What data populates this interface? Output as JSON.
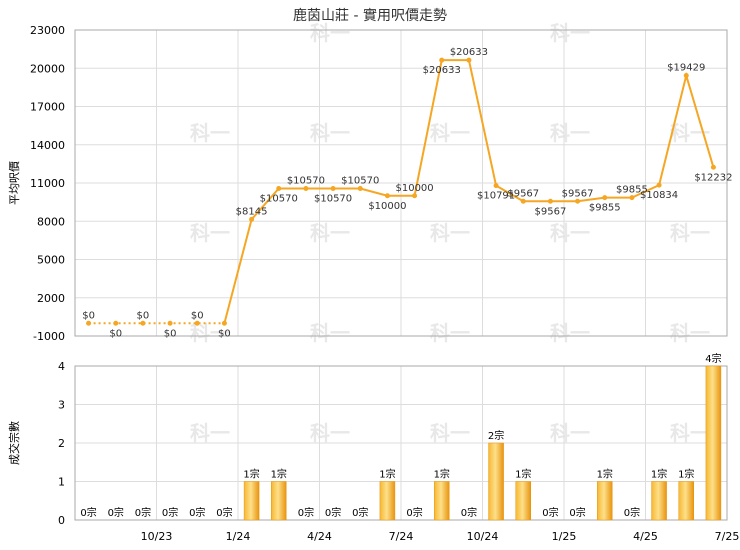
{
  "chart_data": [
    {
      "type": "line",
      "title": "鹿茵山莊 - 實用呎價走勢",
      "ylabel": "平均呎價",
      "ylim": [
        -1000,
        23000
      ],
      "yticks": [
        -1000,
        2000,
        5000,
        8000,
        11000,
        14000,
        17000,
        20000,
        23000
      ],
      "grid": true,
      "x_tick_labels": [
        "10/23",
        "1/24",
        "4/24",
        "7/24",
        "10/24",
        "1/25",
        "4/25",
        "7/25"
      ],
      "x_tick_index": [
        2,
        5,
        8,
        11,
        14,
        17,
        20,
        23
      ],
      "line_color": "#f5a623",
      "series": [
        {
          "values": [
            0,
            0,
            0,
            0,
            0,
            0,
            8145,
            10570,
            10570,
            10570,
            10570,
            10000,
            10000,
            20633,
            20633,
            10791,
            9567,
            9567,
            9567,
            9855,
            9855,
            10834,
            19429,
            12232
          ],
          "labels": [
            "$0",
            "$0",
            "$0",
            "$0",
            "$0",
            "$0",
            "$8145",
            "$10570",
            "$10570",
            "$10570",
            "$10570",
            "$10000",
            "$10000",
            "$20633",
            "$20633",
            "$10791",
            "$9567",
            "$9567",
            "$9567",
            "$9855",
            "$9855",
            "$10834",
            "$19429",
            "$12232"
          ],
          "dotted_until": 5
        }
      ]
    },
    {
      "type": "bar",
      "ylabel": "成交宗數",
      "ylim": [
        0,
        4
      ],
      "yticks": [
        0,
        1,
        2,
        3,
        4
      ],
      "grid": true,
      "bar_color": "#f5a623",
      "values": [
        0,
        0,
        0,
        0,
        0,
        0,
        1,
        1,
        0,
        0,
        0,
        1,
        0,
        1,
        0,
        2,
        1,
        0,
        0,
        1,
        0,
        1,
        1,
        4
      ],
      "labels": [
        "0宗",
        "0宗",
        "0宗",
        "0宗",
        "0宗",
        "0宗",
        "1宗",
        "1宗",
        "0宗",
        "0宗",
        "0宗",
        "1宗",
        "0宗",
        "1宗",
        "0宗",
        "2宗",
        "1宗",
        "0宗",
        "0宗",
        "1宗",
        "0宗",
        "1宗",
        "1宗",
        "4宗"
      ],
      "x_tick_labels": [
        "10/23",
        "1/24",
        "4/24",
        "7/24",
        "10/24",
        "1/25",
        "4/25",
        "7/25"
      ]
    }
  ],
  "watermark": "科一"
}
